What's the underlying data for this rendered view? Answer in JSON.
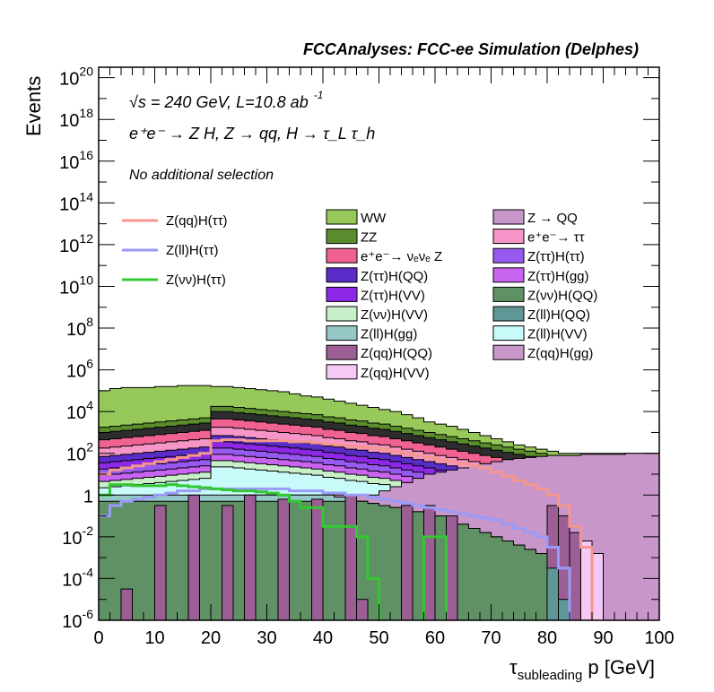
{
  "chart_data": {
    "type": "area",
    "title": "FCCAnalyses: FCC-ee Simulation (Delphes)",
    "annotations": {
      "energy_sqrt": "s",
      "energy_rest": " = 240 GeV, L=10.8 ab",
      "lumi_exp": "-1",
      "process": "e⁺e⁻ → Z H, Z → qq, H → τ_L τ_h",
      "selection": "No additional selection"
    },
    "xlabel": "τ_subleading p [GeV]",
    "xlabel_main": "τ",
    "xlabel_sub": "subleading",
    "xlabel_rest": " p [GeV]",
    "ylabel": "Events",
    "xlim": [
      0,
      100
    ],
    "ylim_exp": [
      -6,
      20.5
    ],
    "yscale": "log",
    "x_ticks": [
      0,
      10,
      20,
      30,
      40,
      50,
      60,
      70,
      80,
      90,
      100
    ],
    "y_tick_labels": [
      {
        "base": "10",
        "exp": "-6"
      },
      {
        "base": "10",
        "exp": "-4"
      },
      {
        "base": "10",
        "exp": "-2"
      },
      {
        "base": "1",
        "exp": ""
      },
      {
        "base": "10",
        "exp": "2"
      },
      {
        "base": "10",
        "exp": "4"
      },
      {
        "base": "10",
        "exp": "6"
      },
      {
        "base": "10",
        "exp": "8"
      },
      {
        "base": "10",
        "exp": "10"
      },
      {
        "base": "10",
        "exp": "12"
      },
      {
        "base": "10",
        "exp": "14"
      },
      {
        "base": "10",
        "exp": "16"
      },
      {
        "base": "10",
        "exp": "18"
      },
      {
        "base": "10",
        "exp": "20"
      }
    ],
    "y_tick_exps": [
      -6,
      -4,
      -2,
      0,
      2,
      4,
      6,
      8,
      10,
      12,
      14,
      16,
      18,
      20
    ],
    "legend_signal": [
      {
        "name": "Z(qq)H(ττ)",
        "color": "#f4978e"
      },
      {
        "name": "Z(ll)H(ττ)",
        "color": "#9a9af8"
      },
      {
        "name": "Z(νν)H(ττ)",
        "color": "#32c832"
      }
    ],
    "legend_background_col1": [
      {
        "name": "WW",
        "color": "#97c85a"
      },
      {
        "name": "ZZ",
        "color": "#5a8c2d"
      },
      {
        "name": "e⁺e⁻→ νₑνₑ Z",
        "color": "#f06292"
      },
      {
        "name": "Z(ττ)H(QQ)",
        "color": "#5a2dc8"
      },
      {
        "name": "Z(ττ)H(VV)",
        "color": "#8c28e6"
      },
      {
        "name": "Z(νν)H(VV)",
        "color": "#c8f0c8"
      },
      {
        "name": "Z(ll)H(gg)",
        "color": "#96c8c8"
      },
      {
        "name": "Z(qq)H(QQ)",
        "color": "#9b5f96"
      },
      {
        "name": "Z(qq)H(VV)",
        "color": "#f5c8f5"
      }
    ],
    "legend_background_col2": [
      {
        "name": "Z → QQ",
        "color": "#c896c8"
      },
      {
        "name": "e⁺e⁻→ ττ",
        "color": "#f696c8"
      },
      {
        "name": "Z(ττ)H(ττ)",
        "color": "#965af0"
      },
      {
        "name": "Z(ττ)H(gg)",
        "color": "#c864f0"
      },
      {
        "name": "Z(νν)H(QQ)",
        "color": "#5f9164"
      },
      {
        "name": "Z(ll)H(QQ)",
        "color": "#5f9696"
      },
      {
        "name": "Z(ll)H(VV)",
        "color": "#c8fafa"
      },
      {
        "name": "Z(qq)H(gg)",
        "color": "#c896c8"
      }
    ],
    "stack_colors": {
      "ww": "#97c85a",
      "zz": "#5a8c2d",
      "nunuZ": "#f06292",
      "eett": "#f696c8",
      "tt_bands": [
        "#5a2dc8",
        "#8c28e6",
        "#965af0",
        "#c864f0",
        "#c8f0c8",
        "#c8fafa"
      ],
      "zqq": "#c896c8",
      "llgg": "#96c8c8",
      "nnqq": "#5f9164",
      "qqqq": "#9b5f96",
      "qqvv": "#f5c8f5",
      "llqq": "#5f9696"
    },
    "series_totals": {
      "bin_width": 2,
      "WW_top_exp": [
        5.0,
        5.1,
        5.15,
        5.15,
        5.15,
        5.2,
        5.2,
        5.25,
        5.25,
        5.25,
        5.2,
        5.2,
        5.15,
        5.1,
        5.05,
        5.0,
        4.95,
        4.85,
        4.75,
        4.7,
        4.6,
        4.5,
        4.4,
        4.3,
        4.2,
        4.1,
        4.0,
        3.85,
        3.7,
        3.5,
        3.4,
        3.3,
        3.15,
        3.0,
        2.85,
        2.7,
        2.55,
        2.4,
        2.3,
        2.2,
        2.1,
        2.0,
        2.0,
        2.0,
        2.0,
        2.0,
        2.0,
        2.0,
        2.0,
        2.0
      ],
      "ZZ_top_exp": [
        3.0,
        3.05,
        3.1,
        3.15,
        3.2,
        3.25,
        3.3,
        3.35,
        3.4,
        3.45,
        4.0,
        4.0,
        3.95,
        3.9,
        3.85,
        3.8,
        3.75,
        3.7,
        3.65,
        3.6,
        3.5,
        3.45,
        3.35,
        3.3,
        3.2,
        3.15,
        3.05,
        2.95,
        2.85,
        2.75,
        2.65,
        2.55,
        2.45,
        2.35,
        2.25,
        2.15,
        2.05,
        1.95,
        1.85,
        1.75,
        1.65,
        1.55,
        1.5,
        1.45,
        1.4,
        1.35,
        1.3,
        1.2,
        1.1,
        1.0
      ],
      "Zqq_top_exp": [
        -0.5,
        -0.5,
        -0.4,
        -0.3,
        -0.3,
        -0.3,
        -0.2,
        -0.2,
        -0.2,
        -0.2,
        -0.1,
        -0.1,
        -0.1,
        0.0,
        0.0,
        0.0,
        0.0,
        0.0,
        0.0,
        0.0,
        0.0,
        0.0,
        0.0,
        0.0,
        0.0,
        0.2,
        0.4,
        0.6,
        0.8,
        1.0,
        1.1,
        1.2,
        1.3,
        1.4,
        1.5,
        1.6,
        1.7,
        1.75,
        1.8,
        1.85,
        1.9,
        1.9,
        1.9,
        1.95,
        1.95,
        1.95,
        1.95,
        2.0,
        2.0,
        2.0
      ],
      "llgg_top_exp": [
        0.0,
        0.0,
        0.0,
        0.0,
        0.0,
        0.0,
        0.0,
        0.0,
        0.0,
        0.0,
        0.0,
        0.0,
        0.0,
        0.0,
        0.0,
        0.0,
        0.0,
        0.0,
        0.0,
        0.0,
        0.0,
        -0.1,
        -0.2,
        -0.3,
        -0.4,
        -0.5,
        -0.6,
        -0.7,
        -0.8,
        -0.9,
        -1.0,
        -1.2,
        -1.4,
        -1.6,
        -1.8,
        -2.0,
        -2.2,
        -2.4,
        -2.6,
        -2.8,
        -3.0,
        -4.0,
        -6.5,
        -6.5,
        -6.5,
        -6.5,
        -6.5,
        -6.5,
        -6.5,
        -6.5
      ],
      "signal_qqHtt_exp": [
        1.0,
        1.2,
        1.3,
        1.4,
        1.5,
        1.6,
        1.7,
        1.8,
        1.9,
        2.0,
        2.6,
        2.65,
        2.65,
        2.6,
        2.6,
        2.6,
        2.6,
        2.55,
        2.55,
        2.5,
        2.45,
        2.4,
        2.35,
        2.3,
        2.25,
        2.2,
        2.1,
        2.0,
        1.9,
        1.8,
        1.7,
        1.6,
        1.5,
        1.4,
        1.3,
        1.1,
        0.9,
        0.7,
        0.5,
        0.3,
        0.0,
        -0.5,
        -1.5,
        -2.5,
        -6.5,
        -6.5,
        -6.5,
        -6.5,
        -6.5,
        -6.5
      ],
      "signal_llHtt_exp": [
        -1.0,
        -0.5,
        -0.3,
        -0.2,
        -0.1,
        0.0,
        0.1,
        0.2,
        0.2,
        0.3,
        0.3,
        0.3,
        0.3,
        0.3,
        0.3,
        0.3,
        0.3,
        0.2,
        0.2,
        0.2,
        0.1,
        0.1,
        0.0,
        0.0,
        -0.1,
        -0.2,
        -0.3,
        -0.4,
        -0.5,
        -0.6,
        -0.7,
        -0.8,
        -0.9,
        -1.0,
        -1.1,
        -1.2,
        -1.4,
        -1.6,
        -1.8,
        -2.0,
        -2.5,
        -3.5,
        -6.5,
        -6.5,
        -6.5,
        -6.5,
        -6.5,
        -6.5,
        -6.5,
        -6.5
      ],
      "signal_nnHtt_exp": [
        0.0,
        0.5,
        0.5,
        0.45,
        0.45,
        0.45,
        0.5,
        0.45,
        0.4,
        0.35,
        0.3,
        0.25,
        0.2,
        0.2,
        0.15,
        0.1,
        0.0,
        -0.3,
        -0.6,
        -0.6,
        -1.5,
        -1.5,
        -1.5,
        -2.0,
        -4.0,
        -6.5,
        -6.5,
        -6.5,
        -6.5,
        -2.0,
        -2.0,
        -6.5,
        -6.5,
        -6.5,
        -6.5,
        -6.5,
        -6.5,
        -6.5,
        -6.5,
        -6.5,
        -6.5,
        -6.5,
        -6.5,
        -6.5,
        -6.5,
        -6.5,
        -6.5,
        -6.5,
        -6.5,
        -6.5
      ]
    }
  }
}
